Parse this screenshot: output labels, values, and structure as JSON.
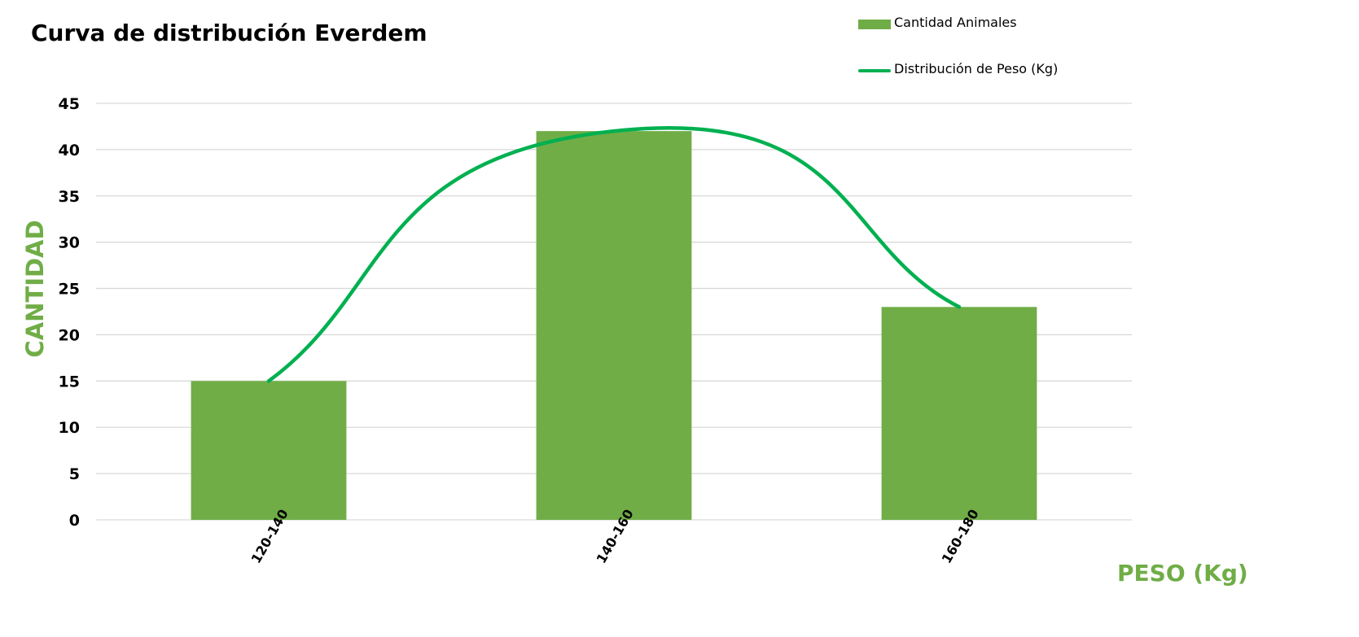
{
  "chart_data": {
    "type": "bar",
    "title": "Curva de distribución Everdem",
    "xlabel": "PESO (Kg)",
    "ylabel": "CANTIDAD",
    "categories": [
      "120-140",
      "140-160",
      "160-180"
    ],
    "series": [
      {
        "name": "Cantidad Animales",
        "type": "bar",
        "values": [
          15,
          42,
          23
        ]
      },
      {
        "name": "Distribución de Peso (Kg)",
        "type": "line",
        "smooth": true,
        "values": [
          15,
          42,
          23
        ]
      }
    ],
    "ylim": [
      0,
      45
    ],
    "yticks": [
      0,
      5,
      10,
      15,
      20,
      25,
      30,
      35,
      40,
      45
    ],
    "grid": true,
    "legend": "top-right"
  },
  "colors": {
    "bar": "#70ad47",
    "line": "#00b050",
    "axis_label": "#70ad47",
    "grid": "#d9d9d9"
  }
}
